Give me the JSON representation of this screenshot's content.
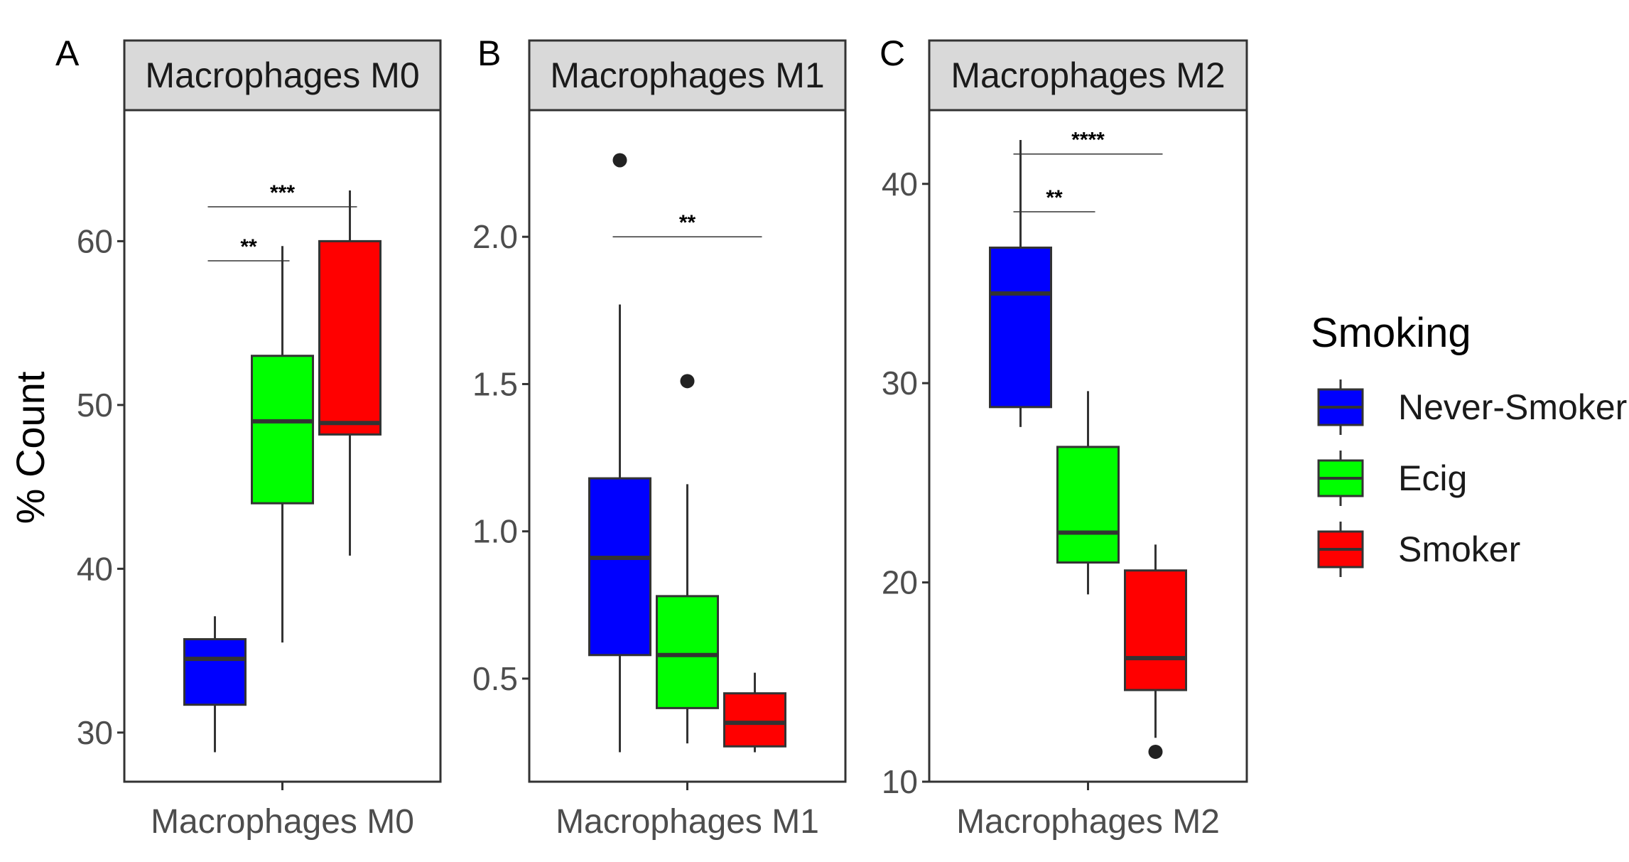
{
  "chart_data": [
    {
      "type": "box",
      "panel_label": "A",
      "title": "Macrophages M0",
      "xlabel": "Macrophages M0",
      "ylabel": "% Count",
      "ylim": [
        27,
        68
      ],
      "yticks": [
        30,
        40,
        50,
        60
      ],
      "groups": [
        {
          "name": "Never-Smoker",
          "whisker_low": 28.8,
          "q1": 31.7,
          "median": 34.5,
          "q3": 35.7,
          "whisker_high": 37.1,
          "outliers": []
        },
        {
          "name": "Ecig",
          "whisker_low": 35.5,
          "q1": 44.0,
          "median": 49.0,
          "q3": 53.0,
          "whisker_high": 59.7,
          "outliers": []
        },
        {
          "name": "Smoker",
          "whisker_low": 40.8,
          "q1": 48.2,
          "median": 48.9,
          "q3": 60.0,
          "whisker_high": 63.1,
          "outliers": []
        }
      ],
      "significance": [
        {
          "from": 0,
          "to": 1,
          "label": "**",
          "y": 58.8
        },
        {
          "from": 0,
          "to": 2,
          "label": "***",
          "y": 62.1
        }
      ]
    },
    {
      "type": "box",
      "panel_label": "B",
      "title": "Macrophages M1",
      "xlabel": "Macrophages M1",
      "ylim": [
        0.15,
        2.43
      ],
      "yticks": [
        0.5,
        1.0,
        1.5,
        2.0
      ],
      "ytick_labels": [
        "0.5",
        "1.0",
        "1.5",
        "2.0"
      ],
      "groups": [
        {
          "name": "Never-Smoker",
          "whisker_low": 0.25,
          "q1": 0.58,
          "median": 0.91,
          "q3": 1.18,
          "whisker_high": 1.77,
          "outliers": [
            2.26
          ]
        },
        {
          "name": "Ecig",
          "whisker_low": 0.28,
          "q1": 0.4,
          "median": 0.58,
          "q3": 0.78,
          "whisker_high": 1.16,
          "outliers": [
            1.51
          ]
        },
        {
          "name": "Smoker",
          "whisker_low": 0.25,
          "q1": 0.27,
          "median": 0.35,
          "q3": 0.45,
          "whisker_high": 0.52,
          "outliers": []
        }
      ],
      "significance": [
        {
          "from": 0,
          "to": 2,
          "label": "**",
          "y": 2.0
        }
      ]
    },
    {
      "type": "box",
      "panel_label": "C",
      "title": "Macrophages M2",
      "xlabel": "Macrophages M2",
      "ylim": [
        10,
        43.7
      ],
      "yticks": [
        10,
        20,
        30,
        40
      ],
      "groups": [
        {
          "name": "Never-Smoker",
          "whisker_low": 27.8,
          "q1": 28.8,
          "median": 34.5,
          "q3": 36.8,
          "whisker_high": 42.2,
          "outliers": []
        },
        {
          "name": "Ecig",
          "whisker_low": 19.4,
          "q1": 21.0,
          "median": 22.5,
          "q3": 26.8,
          "whisker_high": 29.6,
          "outliers": []
        },
        {
          "name": "Smoker",
          "whisker_low": 12.2,
          "q1": 14.6,
          "median": 16.2,
          "q3": 20.6,
          "whisker_high": 21.9,
          "outliers": [
            11.5
          ]
        }
      ],
      "significance": [
        {
          "from": 0,
          "to": 1,
          "label": "**",
          "y": 38.6
        },
        {
          "from": 0,
          "to": 2,
          "label": "****",
          "y": 41.5
        }
      ]
    }
  ],
  "legend": {
    "title": "Smoking",
    "items": [
      {
        "label": "Never-Smoker",
        "color": "#0000ff"
      },
      {
        "label": "Ecig",
        "color": "#00ff00"
      },
      {
        "label": "Smoker",
        "color": "#ff0000"
      }
    ]
  },
  "colors": {
    "never_smoker": "#0000ff",
    "ecig": "#00ff00",
    "smoker": "#ff0000",
    "strip_bg": "#d9d9d9",
    "outline": "#333333"
  }
}
